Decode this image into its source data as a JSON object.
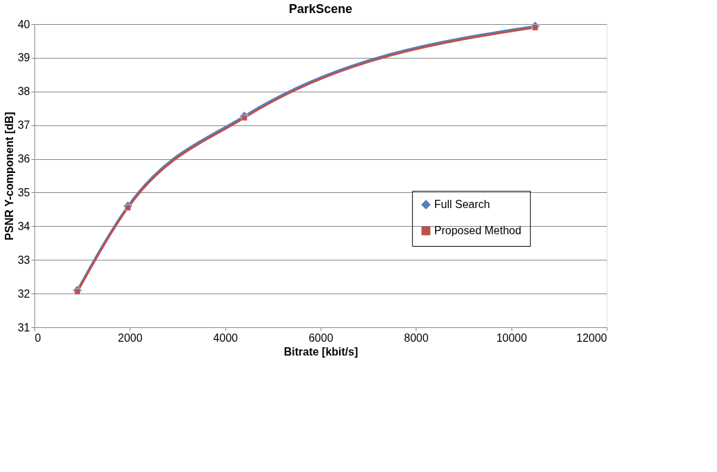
{
  "chart_data": {
    "type": "line",
    "title": "ParkScene",
    "xlabel": "Bitrate [kbit/s]",
    "ylabel": "PSNR Y-component [dB]",
    "xlim": [
      0,
      12000
    ],
    "xticks": [
      0,
      2000,
      4000,
      6000,
      8000,
      10000,
      12000
    ],
    "ylim": [
      31,
      40
    ],
    "yticks": [
      31,
      32,
      33,
      34,
      35,
      36,
      37,
      38,
      39,
      40
    ],
    "grid": "y",
    "legend": "right",
    "series": [
      {
        "name": "Full Search",
        "color": "#4f81bd",
        "marker": "diamond",
        "x": [
          900,
          1960,
          4400,
          10500
        ],
        "values": [
          32.1,
          34.6,
          37.27,
          39.94
        ]
      },
      {
        "name": "Proposed Method",
        "color": "#c0504d",
        "marker": "square",
        "x": [
          900,
          1960,
          4400,
          10500
        ],
        "values": [
          32.06,
          34.55,
          37.22,
          39.9
        ]
      }
    ]
  }
}
